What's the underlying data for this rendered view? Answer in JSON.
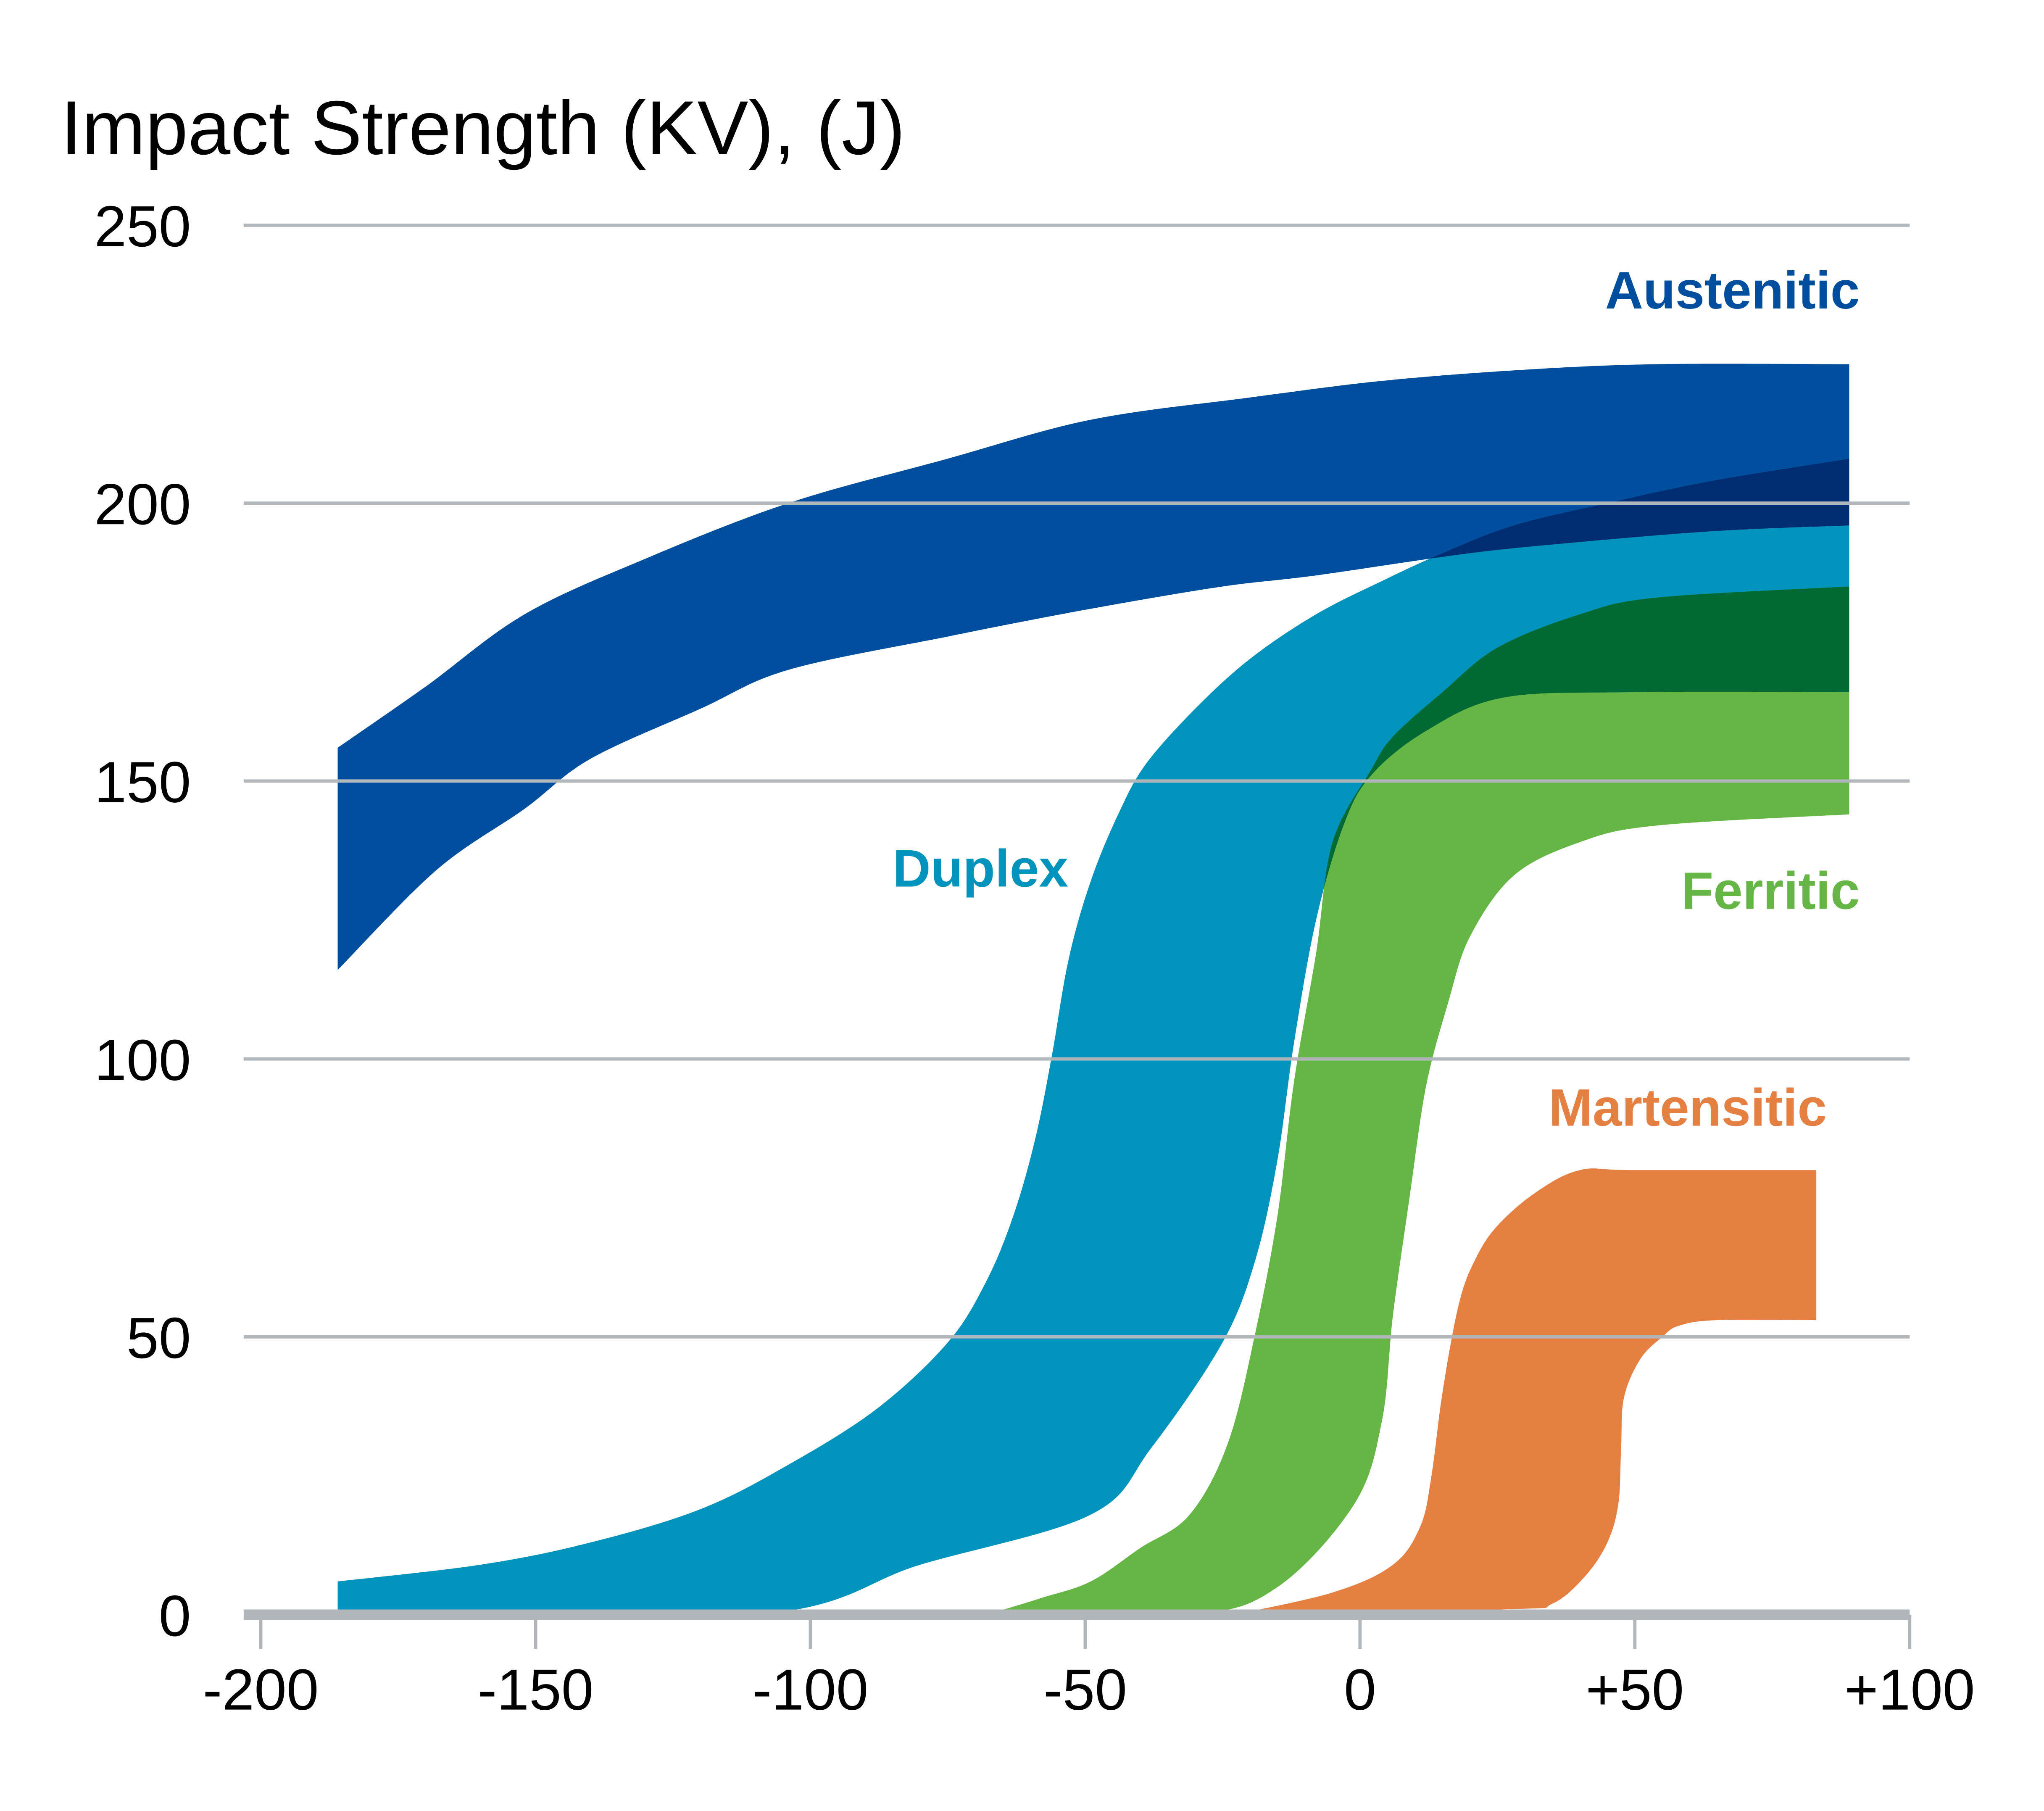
{
  "chart_data": {
    "type": "area",
    "title": "",
    "ylabel": "Impact Strength (KV), (J)",
    "xlabel": "",
    "xlim": [
      -200,
      100
    ],
    "ylim": [
      0,
      250
    ],
    "x_ticks": [
      -200,
      -150,
      -100,
      -50,
      0,
      50,
      100
    ],
    "x_tick_labels": [
      "-200",
      "-150",
      "-100",
      "-50",
      "0",
      "+50",
      "+100"
    ],
    "y_ticks": [
      0,
      50,
      100,
      150,
      200,
      250
    ],
    "y_tick_labels": [
      "0",
      "50",
      "100",
      "150",
      "200",
      "250"
    ],
    "grid": "horizontal",
    "legend": "inline-labels",
    "overlap_colors": {
      "austenitic_duplex": "#002d72",
      "duplex_ferritic": "#006934"
    },
    "series": [
      {
        "name": "Austenitic",
        "color": "#004f9e",
        "upper": [
          [
            -186,
            156
          ],
          [
            -170,
            167
          ],
          [
            -152,
            180
          ],
          [
            -130,
            190
          ],
          [
            -104,
            200
          ],
          [
            -75,
            208
          ],
          [
            -49,
            215
          ],
          [
            -20,
            219
          ],
          [
            4,
            222
          ],
          [
            30,
            224
          ],
          [
            54,
            225
          ],
          [
            89,
            225
          ]
        ],
        "lower": [
          [
            -186,
            116
          ],
          [
            -168,
            134
          ],
          [
            -152,
            145
          ],
          [
            -140,
            154
          ],
          [
            -120,
            163
          ],
          [
            -104,
            170
          ],
          [
            -75,
            176
          ],
          [
            -49,
            181
          ],
          [
            -25,
            185
          ],
          [
            -8,
            187
          ],
          [
            20,
            191
          ],
          [
            40,
            193
          ],
          [
            65,
            195
          ],
          [
            89,
            196
          ]
        ]
      },
      {
        "name": "Duplex",
        "color": "#0093bb",
        "upper": [
          [
            -186,
            6
          ],
          [
            -160,
            9
          ],
          [
            -140,
            13
          ],
          [
            -120,
            19
          ],
          [
            -104,
            27
          ],
          [
            -88,
            37
          ],
          [
            -75,
            49
          ],
          [
            -68,
            60
          ],
          [
            -63,
            72
          ],
          [
            -59,
            86
          ],
          [
            -56,
            101
          ],
          [
            -53,
            118
          ],
          [
            -49,
            132
          ],
          [
            -44,
            144
          ],
          [
            -39,
            153
          ],
          [
            -30,
            163
          ],
          [
            -20,
            172
          ],
          [
            -8,
            180
          ],
          [
            4,
            186
          ],
          [
            15,
            191
          ],
          [
            28,
            196
          ],
          [
            45,
            200
          ],
          [
            64,
            204
          ],
          [
            89,
            208
          ]
        ],
        "lower": [
          [
            -186,
            0
          ],
          [
            -110,
            0
          ],
          [
            -80,
            9
          ],
          [
            -49,
            18
          ],
          [
            -38,
            30
          ],
          [
            -25,
            49
          ],
          [
            -19,
            64
          ],
          [
            -15,
            82
          ],
          [
            -12,
            103
          ],
          [
            -8,
            125
          ],
          [
            -3,
            142
          ],
          [
            2,
            151
          ],
          [
            12,
            159
          ],
          [
            26,
            165
          ],
          [
            50,
            166
          ],
          [
            89,
            166
          ]
        ]
      },
      {
        "name": "Ferritic",
        "color": "#66b646",
        "upper": [
          [
            -68,
            0
          ],
          [
            -58,
            3
          ],
          [
            -49,
            6
          ],
          [
            -40,
            12
          ],
          [
            -31,
            18
          ],
          [
            -24,
            31
          ],
          [
            -19,
            51
          ],
          [
            -15,
            72
          ],
          [
            -12,
            96
          ],
          [
            -8,
            119
          ],
          [
            -5,
            139
          ],
          [
            2,
            152
          ],
          [
            6,
            158
          ],
          [
            15,
            166
          ],
          [
            25,
            174
          ],
          [
            40,
            180
          ],
          [
            54,
            183
          ],
          [
            89,
            185
          ]
        ],
        "lower": [
          [
            -68,
            0
          ],
          [
            -31,
            0
          ],
          [
            -15,
            5
          ],
          [
            -1,
            20
          ],
          [
            4,
            35
          ],
          [
            6,
            54
          ],
          [
            9,
            75
          ],
          [
            12,
            95
          ],
          [
            16,
            110
          ],
          [
            20,
            122
          ],
          [
            28,
            133
          ],
          [
            40,
            139
          ],
          [
            54,
            142
          ],
          [
            89,
            144
          ]
        ]
      },
      {
        "name": "Martensitic",
        "color": "#e67f42",
        "upper": [
          [
            -23,
            0
          ],
          [
            -5,
            4
          ],
          [
            6,
            9
          ],
          [
            11,
            16
          ],
          [
            13,
            25
          ],
          [
            15,
            40
          ],
          [
            18,
            56
          ],
          [
            21,
            64
          ],
          [
            25,
            70
          ],
          [
            32,
            76
          ],
          [
            40,
            80
          ],
          [
            50,
            80
          ],
          [
            83,
            80
          ]
        ],
        "lower": [
          [
            -23,
            0
          ],
          [
            27,
            1
          ],
          [
            35,
            2
          ],
          [
            41,
            7
          ],
          [
            45,
            13
          ],
          [
            47,
            20
          ],
          [
            47.5,
            30
          ],
          [
            48,
            39
          ],
          [
            51,
            46
          ],
          [
            55,
            50
          ],
          [
            58,
            52
          ],
          [
            65,
            53
          ],
          [
            83,
            53
          ]
        ]
      }
    ],
    "annotations": [
      {
        "text": "Austenitic",
        "color": "#004f9e",
        "x": 89,
        "y": 235,
        "anchor": "end"
      },
      {
        "text": "Duplex",
        "color": "#0093bb",
        "x": -55,
        "y": 131,
        "anchor": "end"
      },
      {
        "text": "Ferritic",
        "color": "#66b646",
        "x": 89,
        "y": 127,
        "anchor": "end"
      },
      {
        "text": "Martensitic",
        "color": "#e67f42",
        "x": 83,
        "y": 88,
        "anchor": "end"
      }
    ]
  }
}
